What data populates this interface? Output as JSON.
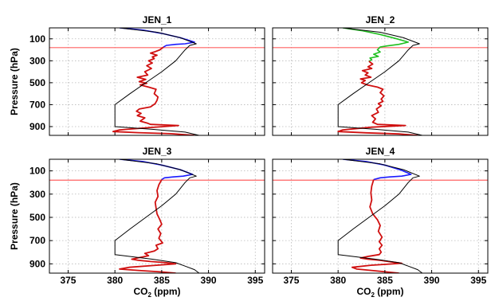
{
  "chart_data": [
    {
      "type": "line",
      "title": "JEN_1",
      "xlim": [
        373,
        396
      ],
      "ylim": [
        0,
        980
      ],
      "y_inverted": true,
      "xticks": [
        375,
        380,
        385,
        390,
        395
      ],
      "yticks": [
        100,
        300,
        500,
        700,
        900
      ],
      "xlabel": "",
      "ylabel": "Pressure (hPa)",
      "grid": true,
      "reference_line": {
        "y": 180,
        "color": "#ff6060"
      },
      "series": [
        {
          "color": "#1a1aff",
          "width": 1.6,
          "points": [
            [
              380.5,
              0
            ],
            [
              383,
              20
            ],
            [
              385,
              50
            ],
            [
              387,
              90
            ],
            [
              388.5,
              130
            ],
            [
              387.5,
              145
            ],
            [
              386.5,
              150
            ],
            [
              385.5,
              160
            ],
            [
              385.2,
              175
            ]
          ]
        },
        {
          "color": "#d01010",
          "width": 1.8,
          "points": [
            [
              385.2,
              175
            ],
            [
              384.8,
              200
            ],
            [
              384.2,
              220
            ],
            [
              383.8,
              230
            ],
            [
              384.5,
              250
            ],
            [
              384,
              265
            ],
            [
              384.2,
              280
            ],
            [
              383.6,
              300
            ],
            [
              384,
              320
            ],
            [
              383.4,
              345
            ],
            [
              383.9,
              370
            ],
            [
              383.2,
              400
            ],
            [
              383.5,
              430
            ],
            [
              382.4,
              450
            ],
            [
              383.3,
              470
            ],
            [
              382.6,
              490
            ],
            [
              383.4,
              505
            ],
            [
              382.7,
              520
            ],
            [
              383.6,
              540
            ],
            [
              384.4,
              560
            ],
            [
              384.2,
              600
            ],
            [
              384.6,
              630
            ],
            [
              384.5,
              660
            ],
            [
              384.3,
              690
            ],
            [
              383.8,
              720
            ],
            [
              382.6,
              740
            ],
            [
              382.3,
              760
            ],
            [
              382.8,
              780
            ],
            [
              382.4,
              800
            ],
            [
              383.2,
              820
            ],
            [
              382.7,
              850
            ],
            [
              383.5,
              870
            ],
            [
              383.8,
              880
            ],
            [
              386.8,
              890
            ],
            [
              383.5,
              910
            ],
            [
              380.5,
              930
            ],
            [
              379.8,
              945
            ],
            [
              382.5,
              955
            ],
            [
              386,
              965
            ],
            [
              388.5,
              980
            ]
          ]
        },
        {
          "color": "#000000",
          "width": 1.0,
          "points": [
            [
              380.5,
              0
            ],
            [
              384.5,
              40
            ],
            [
              387,
              90
            ],
            [
              388.7,
              145
            ],
            [
              388,
              160
            ],
            [
              387.5,
              200
            ],
            [
              386.5,
              300
            ],
            [
              385,
              400
            ],
            [
              383.3,
              500
            ],
            [
              381.6,
              600
            ],
            [
              380,
              700
            ],
            [
              380,
              900
            ],
            [
              384,
              925
            ],
            [
              387.5,
              950
            ],
            [
              389,
              980
            ]
          ]
        }
      ]
    },
    {
      "type": "line",
      "title": "JEN_2",
      "xlim": [
        373,
        396
      ],
      "ylim": [
        0,
        980
      ],
      "y_inverted": true,
      "xticks": [
        375,
        380,
        385,
        390,
        395
      ],
      "yticks": [
        100,
        300,
        500,
        700,
        900
      ],
      "xlabel": "",
      "ylabel": "",
      "grid": true,
      "reference_line": {
        "y": 180,
        "color": "#ff6060"
      },
      "series": [
        {
          "color": "#20c020",
          "width": 1.6,
          "points": [
            [
              380.5,
              0
            ],
            [
              382.5,
              25
            ],
            [
              384.5,
              60
            ],
            [
              386.3,
              100
            ],
            [
              387.5,
              130
            ],
            [
              386.5,
              150
            ],
            [
              385.2,
              165
            ],
            [
              384.5,
              175
            ],
            [
              384.2,
              200
            ],
            [
              384.5,
              220
            ],
            [
              383.8,
              240
            ],
            [
              384.3,
              260
            ],
            [
              383.4,
              275
            ],
            [
              383.6,
              290
            ],
            [
              383.3,
              305
            ]
          ]
        },
        {
          "color": "#d01010",
          "width": 1.8,
          "points": [
            [
              383.3,
              305
            ],
            [
              383.7,
              330
            ],
            [
              383.2,
              355
            ],
            [
              383.6,
              370
            ],
            [
              382.6,
              390
            ],
            [
              383.2,
              410
            ],
            [
              382.9,
              430
            ],
            [
              383.5,
              450
            ],
            [
              382.4,
              465
            ],
            [
              382.9,
              480
            ],
            [
              382.5,
              500
            ],
            [
              383.1,
              520
            ],
            [
              384.2,
              540
            ],
            [
              384.8,
              560
            ],
            [
              384.5,
              590
            ],
            [
              384.9,
              620
            ],
            [
              384.6,
              650
            ],
            [
              384.8,
              670
            ],
            [
              384.3,
              690
            ],
            [
              384.6,
              710
            ],
            [
              384.1,
              740
            ],
            [
              384.3,
              770
            ],
            [
              383.6,
              800
            ],
            [
              384,
              830
            ],
            [
              383.7,
              860
            ],
            [
              384.2,
              880
            ],
            [
              387.2,
              890
            ],
            [
              383.6,
              905
            ],
            [
              380.5,
              930
            ],
            [
              380,
              945
            ],
            [
              383,
              957
            ],
            [
              386.5,
              967
            ],
            [
              388.5,
              980
            ]
          ]
        },
        {
          "color": "#000000",
          "width": 1.0,
          "points": [
            [
              380.5,
              0
            ],
            [
              384.5,
              40
            ],
            [
              387,
              90
            ],
            [
              388.7,
              145
            ],
            [
              388,
              160
            ],
            [
              387.5,
              200
            ],
            [
              386.5,
              300
            ],
            [
              385,
              400
            ],
            [
              383.3,
              500
            ],
            [
              381.6,
              600
            ],
            [
              380,
              700
            ],
            [
              380,
              900
            ],
            [
              384,
              925
            ],
            [
              387.5,
              950
            ],
            [
              389,
              980
            ]
          ]
        }
      ]
    },
    {
      "type": "line",
      "title": "JEN_3",
      "xlim": [
        373,
        396
      ],
      "ylim": [
        0,
        980
      ],
      "y_inverted": true,
      "xticks": [
        375,
        380,
        385,
        390,
        395
      ],
      "yticks": [
        100,
        300,
        500,
        700,
        900
      ],
      "xlabel": "CO2 (ppm)",
      "ylabel": "Pressure (hPa)",
      "grid": true,
      "reference_line": {
        "y": 180,
        "color": "#ff6060"
      },
      "series": [
        {
          "color": "#1a1aff",
          "width": 1.6,
          "points": [
            [
              380.5,
              0
            ],
            [
              383,
              20
            ],
            [
              385,
              50
            ],
            [
              387,
              90
            ],
            [
              388.3,
              130
            ],
            [
              387.3,
              145
            ],
            [
              386.2,
              152
            ],
            [
              385.3,
              160
            ],
            [
              385,
              175
            ]
          ]
        },
        {
          "color": "#d01010",
          "width": 1.8,
          "points": [
            [
              385,
              175
            ],
            [
              384.7,
              220
            ],
            [
              384.5,
              270
            ],
            [
              384.6,
              320
            ],
            [
              384.3,
              370
            ],
            [
              384.4,
              420
            ],
            [
              384.5,
              470
            ],
            [
              384.8,
              520
            ],
            [
              385,
              560
            ],
            [
              384.6,
              600
            ],
            [
              384.9,
              640
            ],
            [
              384.7,
              680
            ],
            [
              385.1,
              720
            ],
            [
              384.4,
              740
            ],
            [
              384.6,
              770
            ],
            [
              384.2,
              790
            ],
            [
              383.2,
              810
            ],
            [
              383.6,
              830
            ],
            [
              382.7,
              845
            ],
            [
              381.8,
              860
            ],
            [
              382.5,
              870
            ],
            [
              383.8,
              880
            ],
            [
              385.5,
              890
            ],
            [
              386.5,
              900
            ],
            [
              384,
              915
            ],
            [
              381.5,
              930
            ],
            [
              380.5,
              945
            ],
            [
              382.5,
              957
            ],
            [
              385,
              970
            ],
            [
              386.5,
              980
            ]
          ]
        },
        {
          "color": "#000000",
          "width": 1.0,
          "points": [
            [
              380.5,
              0
            ],
            [
              384.5,
              40
            ],
            [
              387,
              90
            ],
            [
              388.7,
              145
            ],
            [
              388,
              160
            ],
            [
              387.5,
              200
            ],
            [
              386.5,
              300
            ],
            [
              385,
              400
            ],
            [
              383.3,
              500
            ],
            [
              381.6,
              600
            ],
            [
              380,
              700
            ],
            [
              380,
              820
            ],
            [
              384,
              860
            ],
            [
              386.5,
              890
            ],
            [
              387.5,
              920
            ],
            [
              388.5,
              950
            ],
            [
              389,
              980
            ]
          ]
        }
      ]
    },
    {
      "type": "line",
      "title": "JEN_4",
      "xlim": [
        373,
        396
      ],
      "ylim": [
        0,
        980
      ],
      "y_inverted": true,
      "xticks": [
        375,
        380,
        385,
        390,
        395
      ],
      "yticks": [
        100,
        300,
        500,
        700,
        900
      ],
      "xlabel": "CO2 (ppm)",
      "ylabel": "",
      "grid": true,
      "reference_line": {
        "y": 180,
        "color": "#ff6060"
      },
      "series": [
        {
          "color": "#1a1aff",
          "width": 1.6,
          "points": [
            [
              380.5,
              0
            ],
            [
              383,
              20
            ],
            [
              385,
              50
            ],
            [
              386.8,
              95
            ],
            [
              387.8,
              130
            ],
            [
              386.8,
              145
            ],
            [
              385.5,
              152
            ],
            [
              384.5,
              160
            ],
            [
              383.8,
              175
            ]
          ]
        },
        {
          "color": "#d01010",
          "width": 1.8,
          "points": [
            [
              383.8,
              175
            ],
            [
              383.6,
              230
            ],
            [
              383.5,
              290
            ],
            [
              383.6,
              350
            ],
            [
              383.4,
              410
            ],
            [
              383.7,
              470
            ],
            [
              384.2,
              520
            ],
            [
              384.5,
              570
            ],
            [
              384.3,
              620
            ],
            [
              384.7,
              670
            ],
            [
              384.4,
              710
            ],
            [
              384.7,
              740
            ],
            [
              384.4,
              770
            ],
            [
              384.6,
              800
            ],
            [
              384.4,
              820
            ],
            [
              383.3,
              835
            ],
            [
              382.4,
              850
            ],
            [
              383.2,
              860
            ],
            [
              384.5,
              870
            ],
            [
              385.8,
              885
            ],
            [
              386.8,
              895
            ],
            [
              383.5,
              912
            ],
            [
              381.5,
              930
            ],
            [
              382,
              945
            ],
            [
              384,
              960
            ],
            [
              386.5,
              980
            ]
          ]
        },
        {
          "color": "#000000",
          "width": 1.0,
          "points": [
            [
              380.5,
              0
            ],
            [
              384.5,
              40
            ],
            [
              387,
              90
            ],
            [
              388.7,
              145
            ],
            [
              388,
              160
            ],
            [
              387.5,
              200
            ],
            [
              386.5,
              300
            ],
            [
              385,
              400
            ],
            [
              383.3,
              500
            ],
            [
              381.6,
              600
            ],
            [
              380,
              700
            ],
            [
              380,
              820
            ],
            [
              384,
              860
            ],
            [
              386.5,
              890
            ],
            [
              387.5,
              920
            ],
            [
              388.5,
              950
            ],
            [
              389,
              980
            ]
          ]
        }
      ]
    }
  ],
  "axis_labels": {
    "ylabel": "Pressure (hPa)",
    "xlabel_main": "CO",
    "xlabel_sub": "2",
    "xlabel_unit": " (ppm)"
  }
}
